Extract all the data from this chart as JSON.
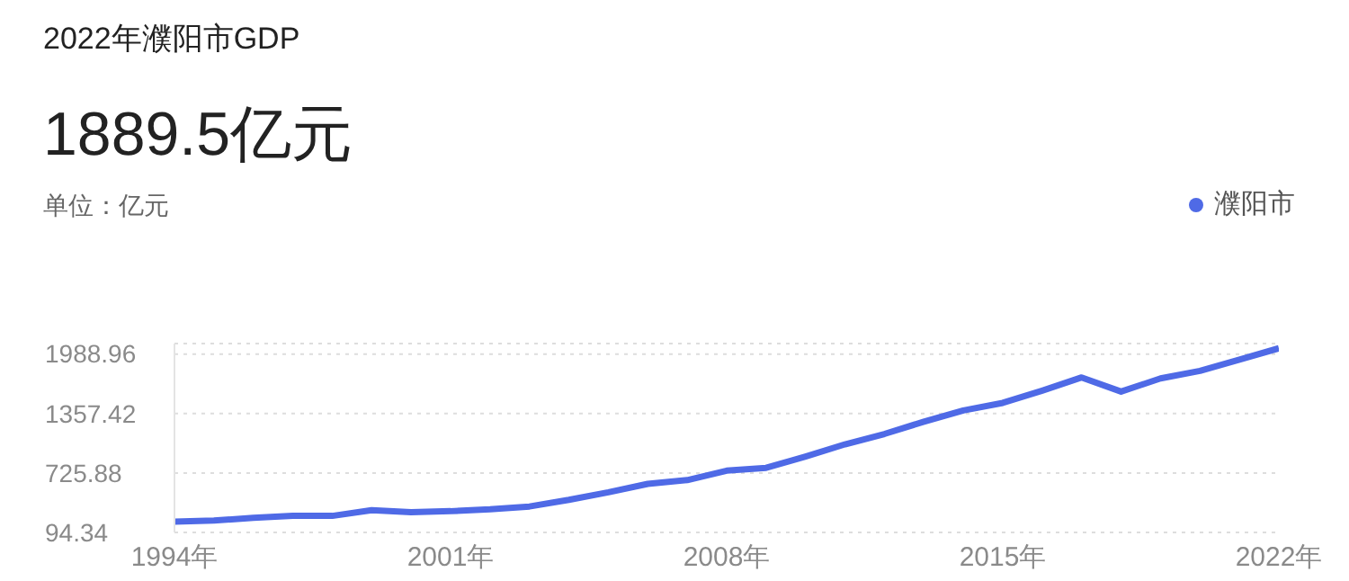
{
  "chart_data": {
    "type": "line",
    "title": "2022年濮阳市GDP",
    "subtitle": "1889.5亿元",
    "annotations": [
      "单位：亿元"
    ],
    "x": [
      1994,
      1995,
      1996,
      1997,
      1998,
      1999,
      2000,
      2001,
      2002,
      2003,
      2004,
      2005,
      2006,
      2007,
      2008,
      2009,
      2010,
      2011,
      2012,
      2013,
      2014,
      2015,
      2016,
      2017,
      2018,
      2019,
      2020,
      2021,
      2022
    ],
    "series": [
      {
        "name": "濮阳市",
        "color": "#4f6ae6",
        "values": [
          210,
          220,
          250,
          270,
          270,
          330,
          310,
          320,
          340,
          370,
          440,
          520,
          610,
          650,
          750,
          780,
          900,
          1030,
          1140,
          1270,
          1390,
          1470,
          1600,
          1740,
          1590,
          1730,
          1810,
          1930,
          2050
        ]
      }
    ],
    "xlim": [
      1994,
      2022
    ],
    "xticks": [
      {
        "value": 1994,
        "label": "1994年"
      },
      {
        "value": 2001,
        "label": "2001年"
      },
      {
        "value": 2008,
        "label": "2008年"
      },
      {
        "value": 2015,
        "label": "2015年"
      },
      {
        "value": 2022,
        "label": "2022年"
      }
    ],
    "ylim": [
      94.34,
      2100
    ],
    "yticks": [
      94.34,
      725.88,
      1357.42,
      1988.96
    ],
    "grid": "y",
    "legend": "top right",
    "marker": "none",
    "line_style": "solid"
  }
}
